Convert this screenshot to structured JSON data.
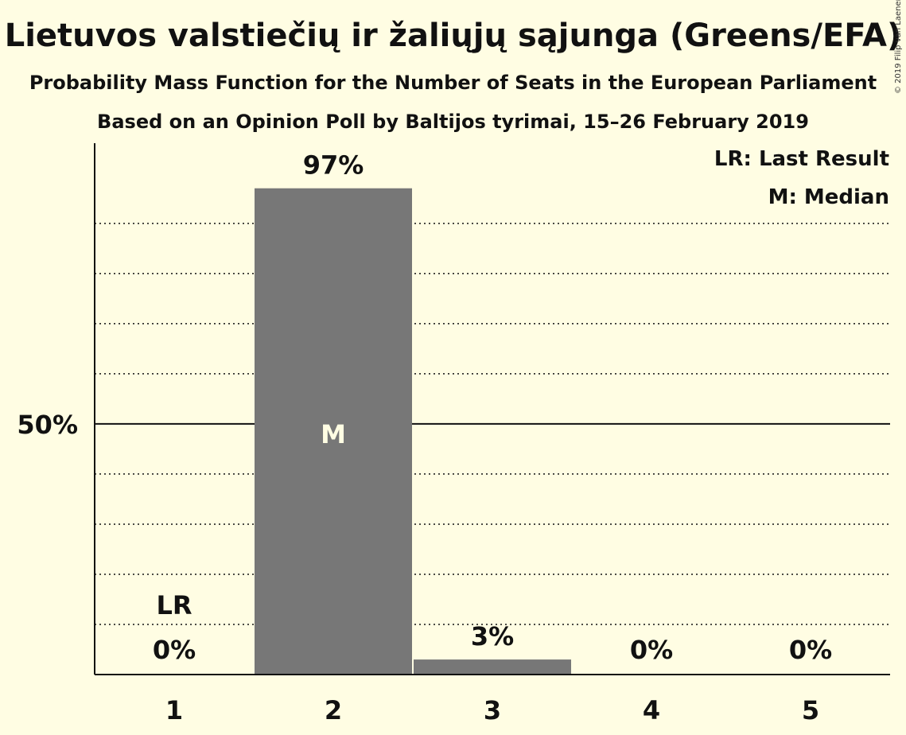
{
  "header": {
    "title": "Lietuvos valstiečių ir žaliųjų sąjunga (Greens/EFA)",
    "subtitle": "Probability Mass Function for the Number of Seats in the European Parliament",
    "source": "Based on an Opinion Poll by Baltijos tyrimai, 15–26 February 2019",
    "copyright": "© 2019 Filip van Laenen"
  },
  "legend": {
    "last_result": "LR: Last Result",
    "median": "M: Median"
  },
  "chart_data": {
    "type": "bar",
    "categories": [
      "1",
      "2",
      "3",
      "4",
      "5"
    ],
    "values": [
      0,
      97,
      3,
      0,
      0
    ],
    "value_labels": [
      "0%",
      "97%",
      "3%",
      "0%",
      "0%"
    ],
    "ylim": [
      0,
      106
    ],
    "y_ticks": [
      {
        "value": 50,
        "label": "50%"
      }
    ],
    "minor_gridlines": [
      10,
      20,
      30,
      40,
      60,
      70,
      80,
      90
    ],
    "median_category": "2",
    "median_marker": "M",
    "last_result_category": "1",
    "last_result_marker": "LR",
    "bar_color": "#777777",
    "background": "#fffde3"
  }
}
